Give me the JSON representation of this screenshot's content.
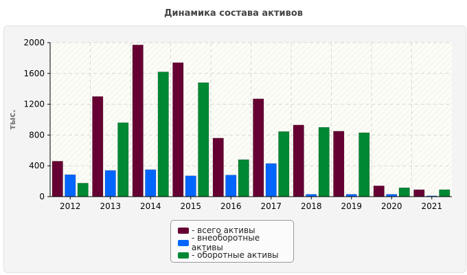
{
  "chart_data": {
    "type": "bar",
    "title": "Динамика состава активов",
    "ylabel": "тыс.",
    "xlabel": "",
    "categories": [
      "2012",
      "2013",
      "2014",
      "2015",
      "2016",
      "2017",
      "2018",
      "2019",
      "2020",
      "2021"
    ],
    "ylim": [
      0,
      2000
    ],
    "yticks": [
      0,
      400,
      800,
      1200,
      1600,
      2000
    ],
    "grid": true,
    "legend_position": "bottom",
    "series": [
      {
        "name": "- всего активы",
        "color": "#660033",
        "values": [
          460,
          1300,
          1970,
          1740,
          760,
          1270,
          930,
          850,
          140,
          90
        ]
      },
      {
        "name": "- внеоборотные активы",
        "color": "#0066ff",
        "values": [
          285,
          340,
          350,
          270,
          280,
          430,
          30,
          30,
          30,
          10
        ]
      },
      {
        "name": "- оборотные активы",
        "color": "#008833",
        "values": [
          175,
          960,
          1620,
          1480,
          480,
          845,
          900,
          830,
          115,
          90
        ]
      }
    ]
  }
}
